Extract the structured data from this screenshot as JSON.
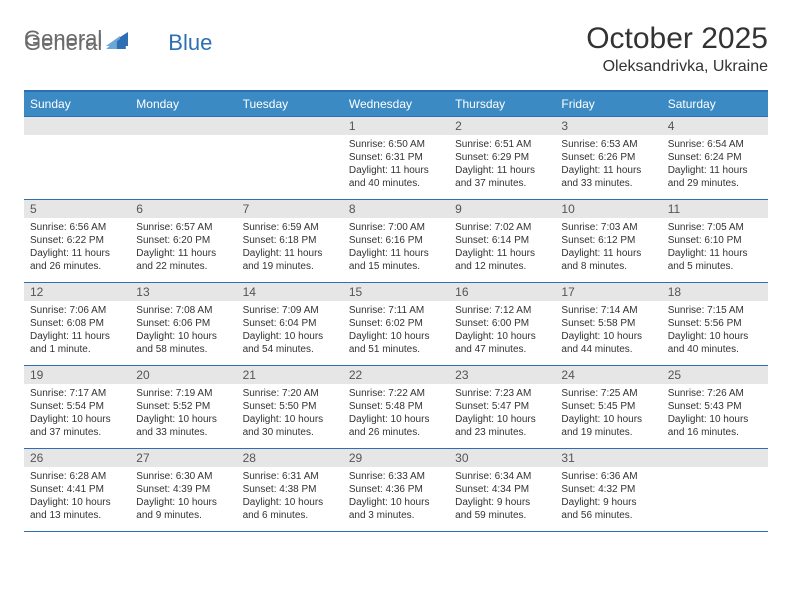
{
  "logo": {
    "word1": "General",
    "word2": "Blue",
    "triangle_color": "#2e6fb3"
  },
  "header": {
    "title": "October 2025",
    "location": "Oleksandrivka, Ukraine"
  },
  "colors": {
    "header_bg": "#3b8ac4",
    "rule": "#2e6fb3",
    "daynum_bg": "#e6e6e6",
    "text": "#333333",
    "logo_gray": "#6b6b6b",
    "logo_blue": "#2e6fb3",
    "white": "#ffffff"
  },
  "day_labels": [
    "Sunday",
    "Monday",
    "Tuesday",
    "Wednesday",
    "Thursday",
    "Friday",
    "Saturday"
  ],
  "weeks": [
    [
      {
        "n": "",
        "sr": "",
        "ss": "",
        "dl": ""
      },
      {
        "n": "",
        "sr": "",
        "ss": "",
        "dl": ""
      },
      {
        "n": "",
        "sr": "",
        "ss": "",
        "dl": ""
      },
      {
        "n": "1",
        "sr": "6:50 AM",
        "ss": "6:31 PM",
        "dl": "11 hours and 40 minutes."
      },
      {
        "n": "2",
        "sr": "6:51 AM",
        "ss": "6:29 PM",
        "dl": "11 hours and 37 minutes."
      },
      {
        "n": "3",
        "sr": "6:53 AM",
        "ss": "6:26 PM",
        "dl": "11 hours and 33 minutes."
      },
      {
        "n": "4",
        "sr": "6:54 AM",
        "ss": "6:24 PM",
        "dl": "11 hours and 29 minutes."
      }
    ],
    [
      {
        "n": "5",
        "sr": "6:56 AM",
        "ss": "6:22 PM",
        "dl": "11 hours and 26 minutes."
      },
      {
        "n": "6",
        "sr": "6:57 AM",
        "ss": "6:20 PM",
        "dl": "11 hours and 22 minutes."
      },
      {
        "n": "7",
        "sr": "6:59 AM",
        "ss": "6:18 PM",
        "dl": "11 hours and 19 minutes."
      },
      {
        "n": "8",
        "sr": "7:00 AM",
        "ss": "6:16 PM",
        "dl": "11 hours and 15 minutes."
      },
      {
        "n": "9",
        "sr": "7:02 AM",
        "ss": "6:14 PM",
        "dl": "11 hours and 12 minutes."
      },
      {
        "n": "10",
        "sr": "7:03 AM",
        "ss": "6:12 PM",
        "dl": "11 hours and 8 minutes."
      },
      {
        "n": "11",
        "sr": "7:05 AM",
        "ss": "6:10 PM",
        "dl": "11 hours and 5 minutes."
      }
    ],
    [
      {
        "n": "12",
        "sr": "7:06 AM",
        "ss": "6:08 PM",
        "dl": "11 hours and 1 minute."
      },
      {
        "n": "13",
        "sr": "7:08 AM",
        "ss": "6:06 PM",
        "dl": "10 hours and 58 minutes."
      },
      {
        "n": "14",
        "sr": "7:09 AM",
        "ss": "6:04 PM",
        "dl": "10 hours and 54 minutes."
      },
      {
        "n": "15",
        "sr": "7:11 AM",
        "ss": "6:02 PM",
        "dl": "10 hours and 51 minutes."
      },
      {
        "n": "16",
        "sr": "7:12 AM",
        "ss": "6:00 PM",
        "dl": "10 hours and 47 minutes."
      },
      {
        "n": "17",
        "sr": "7:14 AM",
        "ss": "5:58 PM",
        "dl": "10 hours and 44 minutes."
      },
      {
        "n": "18",
        "sr": "7:15 AM",
        "ss": "5:56 PM",
        "dl": "10 hours and 40 minutes."
      }
    ],
    [
      {
        "n": "19",
        "sr": "7:17 AM",
        "ss": "5:54 PM",
        "dl": "10 hours and 37 minutes."
      },
      {
        "n": "20",
        "sr": "7:19 AM",
        "ss": "5:52 PM",
        "dl": "10 hours and 33 minutes."
      },
      {
        "n": "21",
        "sr": "7:20 AM",
        "ss": "5:50 PM",
        "dl": "10 hours and 30 minutes."
      },
      {
        "n": "22",
        "sr": "7:22 AM",
        "ss": "5:48 PM",
        "dl": "10 hours and 26 minutes."
      },
      {
        "n": "23",
        "sr": "7:23 AM",
        "ss": "5:47 PM",
        "dl": "10 hours and 23 minutes."
      },
      {
        "n": "24",
        "sr": "7:25 AM",
        "ss": "5:45 PM",
        "dl": "10 hours and 19 minutes."
      },
      {
        "n": "25",
        "sr": "7:26 AM",
        "ss": "5:43 PM",
        "dl": "10 hours and 16 minutes."
      }
    ],
    [
      {
        "n": "26",
        "sr": "6:28 AM",
        "ss": "4:41 PM",
        "dl": "10 hours and 13 minutes."
      },
      {
        "n": "27",
        "sr": "6:30 AM",
        "ss": "4:39 PM",
        "dl": "10 hours and 9 minutes."
      },
      {
        "n": "28",
        "sr": "6:31 AM",
        "ss": "4:38 PM",
        "dl": "10 hours and 6 minutes."
      },
      {
        "n": "29",
        "sr": "6:33 AM",
        "ss": "4:36 PM",
        "dl": "10 hours and 3 minutes."
      },
      {
        "n": "30",
        "sr": "6:34 AM",
        "ss": "4:34 PM",
        "dl": "9 hours and 59 minutes."
      },
      {
        "n": "31",
        "sr": "6:36 AM",
        "ss": "4:32 PM",
        "dl": "9 hours and 56 minutes."
      },
      {
        "n": "",
        "sr": "",
        "ss": "",
        "dl": ""
      }
    ]
  ],
  "labels": {
    "sunrise": "Sunrise:",
    "sunset": "Sunset:",
    "daylight": "Daylight:"
  }
}
